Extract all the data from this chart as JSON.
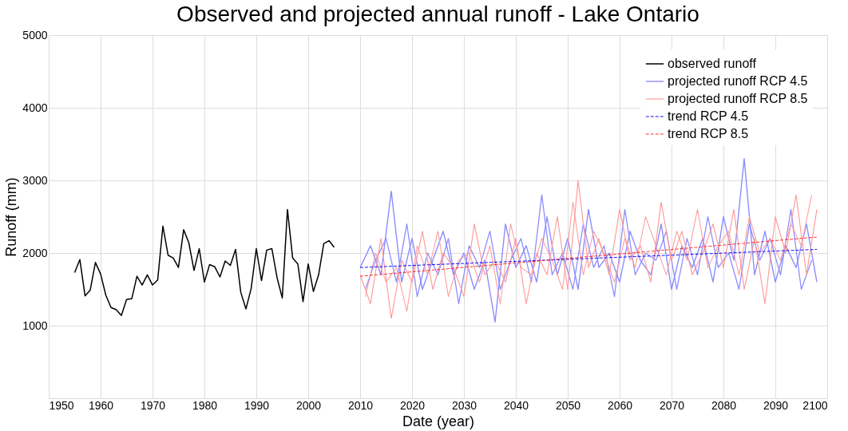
{
  "chart_data": {
    "type": "line",
    "title": "Observed and projected annual runoff - Lake Ontario",
    "xlabel": "Date (year)",
    "ylabel": "Runoff (mm)",
    "xlim": [
      1950,
      2100
    ],
    "xticks": [
      1950,
      1960,
      1970,
      1980,
      1990,
      2000,
      2010,
      2020,
      2030,
      2040,
      2050,
      2060,
      2070,
      2080,
      2090,
      2100
    ],
    "ylim": [
      0,
      5000
    ],
    "yticks": [
      1000,
      2000,
      3000,
      4000,
      5000
    ],
    "grid": true,
    "legend": "top right",
    "marker": "none",
    "series": [
      {
        "name": "observed runoff",
        "color": "#000000",
        "line_style": "solid",
        "x": [
          1955,
          1956,
          1957,
          1958,
          1959,
          1960,
          1961,
          1962,
          1963,
          1964,
          1965,
          1966,
          1967,
          1968,
          1969,
          1970,
          1971,
          1972,
          1973,
          1974,
          1975,
          1976,
          1977,
          1978,
          1979,
          1980,
          1981,
          1982,
          1983,
          1984,
          1985,
          1986,
          1987,
          1988,
          1989,
          1990,
          1991,
          1992,
          1993,
          1994,
          1995,
          1996,
          1997,
          1998,
          1999,
          2000,
          2001,
          2002,
          2003,
          2004,
          2005
        ],
        "values": [
          1730,
          1910,
          1410,
          1490,
          1870,
          1710,
          1420,
          1250,
          1220,
          1140,
          1360,
          1370,
          1680,
          1560,
          1700,
          1560,
          1630,
          2370,
          1970,
          1930,
          1800,
          2320,
          2140,
          1760,
          2060,
          1600,
          1840,
          1810,
          1670,
          1890,
          1830,
          2050,
          1460,
          1230,
          1510,
          2060,
          1620,
          2040,
          2060,
          1660,
          1380,
          2600,
          1930,
          1850,
          1330,
          1850,
          1470,
          1700,
          2130,
          2170,
          2080
        ]
      },
      {
        "name": "projected runoff RCP 4.5",
        "color": "#8c8cff",
        "line_style": "solid",
        "x": [
          2010,
          2012,
          2014,
          2016,
          2018,
          2020,
          2022,
          2024,
          2026,
          2028,
          2030,
          2032,
          2034,
          2036,
          2038,
          2040,
          2042,
          2044,
          2046,
          2048,
          2050,
          2052,
          2054,
          2056,
          2058,
          2060,
          2062,
          2064,
          2066,
          2068,
          2070,
          2072,
          2074,
          2076,
          2078,
          2080,
          2082,
          2084,
          2086,
          2088,
          2090,
          2092,
          2094,
          2096,
          2098
        ],
        "values": [
          1800,
          2100,
          1700,
          2850,
          1600,
          2200,
          1500,
          1900,
          2300,
          1700,
          2000,
          1500,
          1900,
          1050,
          2400,
          1800,
          2100,
          1600,
          2500,
          1700,
          2200,
          1500,
          2600,
          1800,
          2000,
          1600,
          2300,
          1900,
          1700,
          2400,
          1500,
          2100,
          1800,
          2200,
          1600,
          2500,
          1900,
          3300,
          1700,
          2300,
          1600,
          2100,
          1800,
          2400,
          1600
        ]
      },
      {
        "color": "#8c8cff",
        "line_style": "solid",
        "x": [
          2011,
          2013,
          2015,
          2017,
          2019,
          2021,
          2023,
          2025,
          2027,
          2029,
          2031,
          2033,
          2035,
          2037,
          2039,
          2041,
          2043,
          2045,
          2047,
          2049,
          2051,
          2053,
          2055,
          2057,
          2059,
          2061,
          2063,
          2065,
          2067,
          2069,
          2071,
          2073,
          2075,
          2077,
          2079,
          2081,
          2083,
          2085,
          2087,
          2089,
          2091,
          2093,
          2095,
          2097
        ],
        "values": [
          1500,
          1900,
          2200,
          1600,
          2400,
          1400,
          2000,
          1700,
          2200,
          1300,
          2100,
          1800,
          2300,
          1500,
          1900,
          2200,
          1600,
          2800,
          1700,
          2000,
          1500,
          2400,
          1800,
          2100,
          1400,
          2600,
          1700,
          2000,
          1900,
          2300,
          1500,
          2200,
          1700,
          2500,
          1800,
          2000,
          1500,
          2400,
          1900,
          2200,
          1700,
          2600,
          1500,
          1900
        ]
      },
      {
        "name": "projected runoff RCP 8.5",
        "color": "#ff9a9a",
        "line_style": "solid",
        "x": [
          2010,
          2012,
          2014,
          2016,
          2018,
          2020,
          2022,
          2024,
          2026,
          2028,
          2030,
          2032,
          2034,
          2036,
          2038,
          2040,
          2042,
          2044,
          2046,
          2048,
          2050,
          2052,
          2054,
          2056,
          2058,
          2060,
          2062,
          2064,
          2066,
          2068,
          2070,
          2072,
          2074,
          2076,
          2078,
          2080,
          2082,
          2084,
          2086,
          2088,
          2090,
          2092,
          2094,
          2096,
          2098
        ],
        "values": [
          1700,
          1300,
          2200,
          1100,
          1900,
          1600,
          2300,
          1500,
          2000,
          1800,
          1400,
          2400,
          1700,
          1900,
          1600,
          2200,
          1300,
          2000,
          1700,
          2500,
          1500,
          3000,
          1800,
          2200,
          1700,
          2600,
          1900,
          2100,
          1600,
          2700,
          1900,
          2300,
          1700,
          2000,
          2400,
          1800,
          2600,
          1500,
          2200,
          1300,
          2500,
          2000,
          2800,
          1700,
          2600
        ]
      },
      {
        "color": "#ff9a9a",
        "line_style": "solid",
        "x": [
          2011,
          2013,
          2015,
          2017,
          2019,
          2021,
          2023,
          2025,
          2027,
          2029,
          2031,
          2033,
          2035,
          2037,
          2039,
          2041,
          2043,
          2045,
          2047,
          2049,
          2051,
          2053,
          2055,
          2057,
          2059,
          2061,
          2063,
          2065,
          2067,
          2069,
          2071,
          2073,
          2075,
          2077,
          2079,
          2081,
          2083,
          2085,
          2087,
          2089,
          2091,
          2093,
          2095,
          2097
        ],
        "values": [
          1400,
          2000,
          1600,
          1800,
          1200,
          2100,
          1700,
          2300,
          1400,
          1900,
          2000,
          1600,
          2100,
          1300,
          2400,
          1800,
          1700,
          2200,
          1900,
          1500,
          2700,
          1700,
          2300,
          2000,
          1600,
          2200,
          1800,
          2500,
          2100,
          1700,
          2300,
          1900,
          2600,
          1800,
          2100,
          2300,
          1700,
          2500,
          2000,
          2200,
          1900,
          2400,
          2100,
          2800
        ]
      },
      {
        "name": "trend RCP 4.5",
        "color": "#0000ff",
        "line_style": "dashed",
        "x": [
          2010,
          2098
        ],
        "values": [
          1800,
          2050
        ]
      },
      {
        "name": "trend RCP 8.5",
        "color": "#ff0000",
        "line_style": "dashed",
        "x": [
          2010,
          2098
        ],
        "values": [
          1680,
          2220
        ]
      }
    ]
  }
}
